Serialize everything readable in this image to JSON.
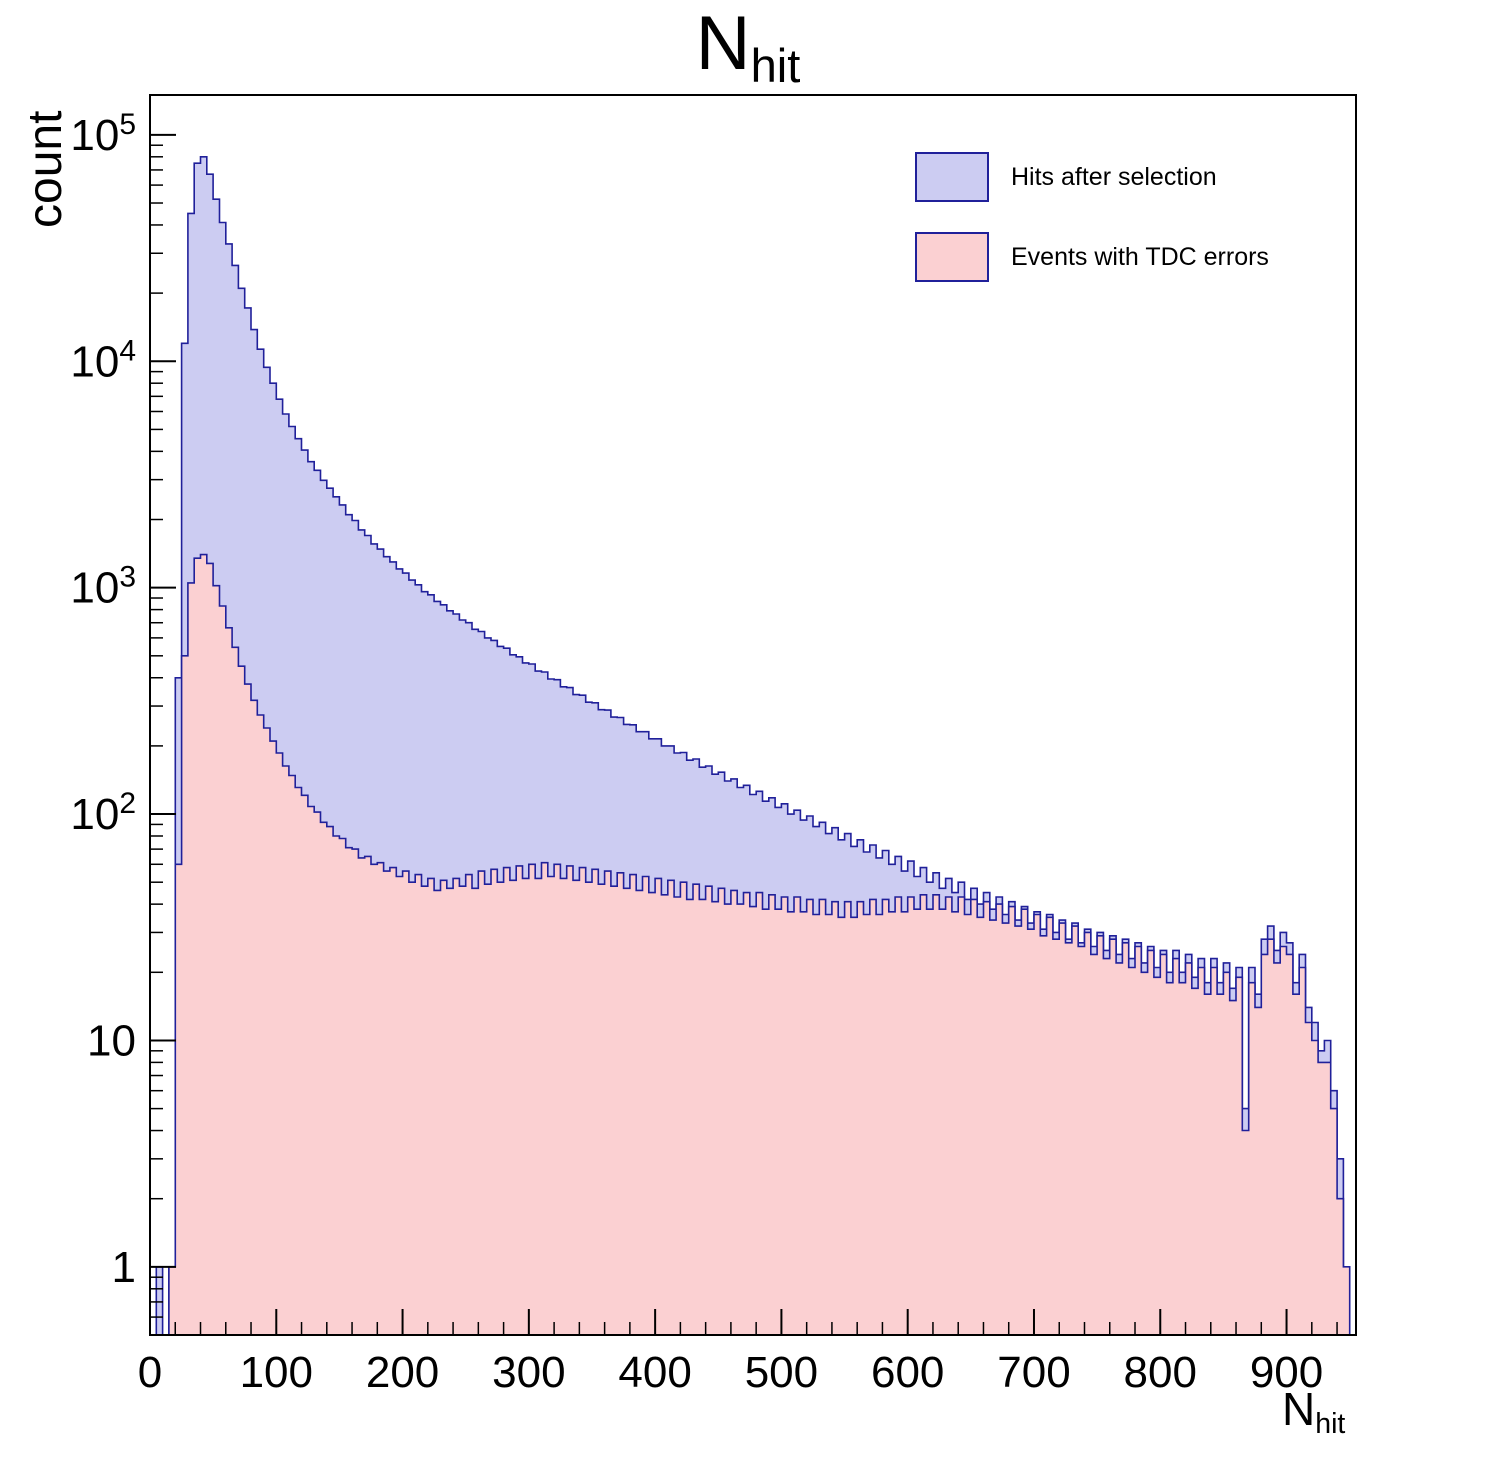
{
  "title": {
    "base": "N",
    "sub": "hit"
  },
  "y_axis": {
    "label": "count"
  },
  "x_axis": {
    "label_base": "N",
    "label_sub": "hit"
  },
  "legend": [
    {
      "label": "Hits after selection"
    },
    {
      "label": "Events with TDC errors"
    }
  ],
  "chart_data": {
    "type": "area",
    "title": "N_hit",
    "xlabel": "N_hit",
    "ylabel": "count",
    "y_scale": "log",
    "grid": false,
    "legend_position": "top-right",
    "x_range": [
      0,
      955
    ],
    "y_range": [
      0.5,
      150000
    ],
    "x_ticks": [
      0,
      100,
      200,
      300,
      400,
      500,
      600,
      700,
      800,
      900
    ],
    "x_minor_step": 20,
    "y_ticks": [
      {
        "v": 1,
        "t": "1"
      },
      {
        "v": 10,
        "t": "10"
      },
      {
        "v": 100,
        "t": "10",
        "e": "2"
      },
      {
        "v": 1000,
        "t": "10",
        "e": "3"
      },
      {
        "v": 10000,
        "t": "10",
        "e": "4"
      },
      {
        "v": 100000,
        "t": "10",
        "e": "5"
      }
    ],
    "bin_width": 5,
    "x_start": 0,
    "series": [
      {
        "name": "Hits after selection",
        "fill": "#ccccf2",
        "stroke": "#20209a",
        "values": [
          0,
          1,
          0,
          1,
          400,
          12000,
          45000,
          75000,
          80000,
          67000,
          52000,
          41000,
          33000,
          26500,
          21000,
          17200,
          13800,
          11300,
          9400,
          8000,
          6800,
          5850,
          5150,
          4550,
          4050,
          3600,
          3300,
          2980,
          2750,
          2520,
          2320,
          2100,
          1980,
          1800,
          1700,
          1560,
          1480,
          1370,
          1300,
          1210,
          1160,
          1080,
          1030,
          960,
          930,
          870,
          840,
          790,
          765,
          720,
          700,
          655,
          640,
          600,
          585,
          550,
          540,
          505,
          495,
          465,
          460,
          428,
          424,
          395,
          392,
          365,
          362,
          337,
          335,
          312,
          310,
          289,
          288,
          268,
          267,
          249,
          248,
          231,
          231,
          215,
          215,
          200,
          200,
          186,
          187,
          173,
          175,
          161,
          163,
          150,
          153,
          140,
          143,
          131,
          134,
          122,
          126,
          114,
          118,
          107,
          111,
          100,
          104,
          94,
          98,
          88,
          92,
          82,
          87,
          77,
          82,
          72,
          77,
          68,
          73,
          64,
          69,
          60,
          65,
          56,
          62,
          53,
          58,
          50,
          55,
          47,
          52,
          45,
          50,
          42,
          47,
          40,
          45,
          38,
          43,
          36,
          41,
          34,
          39,
          33,
          37,
          31,
          36,
          30,
          34,
          28,
          33,
          27,
          31,
          26,
          30,
          25,
          29,
          24,
          28,
          23,
          27,
          22,
          26,
          21,
          25,
          20,
          25,
          20,
          24,
          19,
          23,
          18,
          23,
          18,
          22,
          17,
          21,
          5,
          21,
          16,
          28,
          32,
          25,
          30,
          27,
          18,
          24,
          14,
          12,
          9,
          10,
          6,
          3,
          1
        ]
      },
      {
        "name": "Events with TDC errors",
        "fill": "#fbd0d2",
        "stroke": "#20209a",
        "values": [
          0,
          0,
          0,
          1,
          60,
          500,
          1050,
          1350,
          1400,
          1280,
          1020,
          830,
          665,
          545,
          450,
          375,
          318,
          274,
          240,
          210,
          186,
          163,
          148,
          131,
          121,
          108,
          102,
          92,
          88,
          80,
          78,
          71,
          70,
          64,
          65,
          60,
          61,
          56,
          58,
          53,
          56,
          50,
          54,
          48,
          52,
          46,
          51,
          47,
          52,
          48,
          54,
          47,
          56,
          49,
          57,
          50,
          58,
          51,
          59,
          52,
          60,
          52,
          61,
          53,
          60,
          52,
          59,
          51,
          58,
          50,
          57,
          49,
          56,
          48,
          55,
          47,
          54,
          46,
          53,
          45,
          52,
          44,
          51,
          43,
          50,
          42,
          49,
          42,
          48,
          41,
          47,
          40,
          46,
          40,
          45,
          39,
          45,
          38,
          44,
          38,
          43,
          37,
          43,
          37,
          42,
          36,
          42,
          36,
          41,
          35,
          41,
          35,
          41,
          36,
          42,
          36,
          42,
          37,
          43,
          37,
          43,
          38,
          44,
          38,
          44,
          38,
          43,
          37,
          43,
          36,
          42,
          35,
          41,
          34,
          40,
          33,
          39,
          32,
          38,
          31,
          36,
          29,
          35,
          28,
          33,
          27,
          32,
          26,
          30,
          24,
          29,
          23,
          28,
          22,
          27,
          21,
          26,
          20,
          25,
          19,
          24,
          18,
          23,
          18,
          22,
          17,
          21,
          16,
          21,
          16,
          20,
          15,
          19,
          4,
          18,
          14,
          24,
          28,
          22,
          26,
          24,
          16,
          21,
          12,
          10,
          8,
          8,
          5,
          2,
          1
        ]
      }
    ]
  }
}
